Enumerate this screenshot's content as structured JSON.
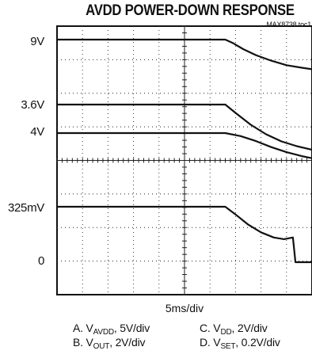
{
  "chart_data": {
    "type": "line",
    "title": "AVDD POWER-DOWN RESPONSE",
    "figure_code": "MAX8738 toc1",
    "xlabel": "5ms/div",
    "grid": true,
    "x_divisions": 10,
    "y_divisions": 8,
    "y_levels": [
      {
        "label": "9V",
        "trace": "A"
      },
      {
        "label": "3.6V",
        "trace": "B"
      },
      {
        "label": "4V",
        "trace": "C"
      },
      {
        "label": "325mV",
        "trace": "D"
      },
      {
        "label": "0",
        "trace": "ground"
      }
    ],
    "series": [
      {
        "name": "A",
        "quantity": "V",
        "subscript": "AVDD",
        "scale": ", 5V/div",
        "x": [
          0,
          6.6,
          6.9,
          7.3,
          7.8,
          8.4,
          9.0,
          9.6,
          10.0
        ],
        "y": [
          9.0,
          9.0,
          8.3,
          7.1,
          5.9,
          4.8,
          3.9,
          3.4,
          3.1
        ]
      },
      {
        "name": "B",
        "quantity": "V",
        "subscript": "OUT",
        "scale": ", 2V/div",
        "x": [
          0,
          6.6,
          7.0,
          7.6,
          8.2,
          8.8,
          9.4,
          10.0
        ],
        "y": [
          3.6,
          3.6,
          3.25,
          2.75,
          2.35,
          2.05,
          1.85,
          1.7
        ]
      },
      {
        "name": "C",
        "quantity": "V",
        "subscript": "DD",
        "scale": ", 2V/div",
        "x": [
          0,
          6.6,
          7.2,
          7.8,
          8.4,
          9.0,
          9.6,
          10.0
        ],
        "y": [
          4.0,
          4.0,
          3.85,
          3.6,
          3.3,
          3.05,
          2.85,
          2.75
        ]
      },
      {
        "name": "D",
        "quantity": "V",
        "subscript": "SET",
        "scale": ", 0.2V/div",
        "x": [
          0,
          6.6,
          7.0,
          7.5,
          8.0,
          8.5,
          8.9,
          9.25,
          9.35,
          10.0
        ],
        "y": [
          0.325,
          0.325,
          0.28,
          0.22,
          0.175,
          0.145,
          0.135,
          0.145,
          0.0,
          0.0
        ]
      }
    ]
  }
}
